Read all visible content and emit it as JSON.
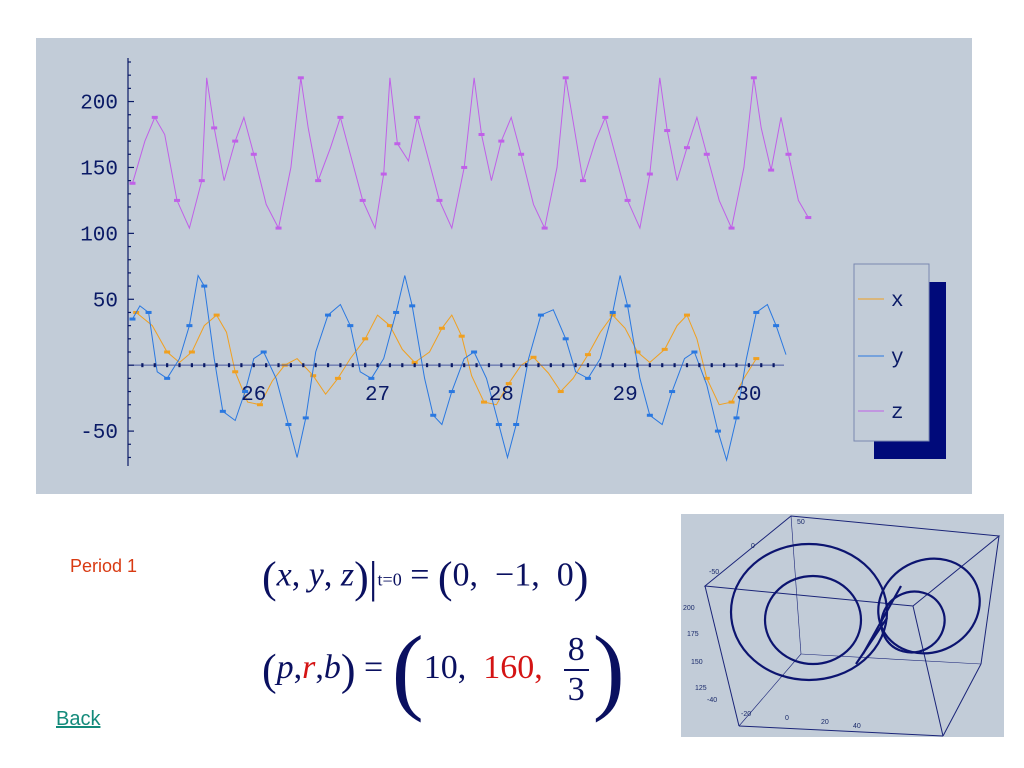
{
  "chart_data": {
    "type": "line",
    "x_range": [
      25.0,
      30.3
    ],
    "y_range": [
      -78,
      230
    ],
    "x_ticks": [
      "26",
      "27",
      "28",
      "29",
      "30"
    ],
    "x_tick_values": [
      26,
      27,
      28,
      29,
      30
    ],
    "y_ticks": [
      "200",
      "150",
      "100",
      "50",
      "-50"
    ],
    "y_tick_values": [
      200,
      150,
      100,
      50,
      -50
    ],
    "legend_position": "right",
    "series": [
      {
        "name": "x",
        "color": "#f0a020",
        "points": [
          [
            25.05,
            40
          ],
          [
            25.18,
            30
          ],
          [
            25.3,
            10
          ],
          [
            25.4,
            2
          ],
          [
            25.5,
            10
          ],
          [
            25.6,
            30
          ],
          [
            25.7,
            38
          ],
          [
            25.78,
            25
          ],
          [
            25.85,
            -5
          ],
          [
            25.95,
            -28
          ],
          [
            26.05,
            -30
          ],
          [
            26.15,
            -12
          ],
          [
            26.25,
            0
          ],
          [
            26.35,
            5
          ],
          [
            26.48,
            -8
          ],
          [
            26.58,
            -22
          ],
          [
            26.68,
            -10
          ],
          [
            26.78,
            5
          ],
          [
            26.9,
            20
          ],
          [
            27.0,
            38
          ],
          [
            27.1,
            30
          ],
          [
            27.2,
            12
          ],
          [
            27.3,
            2
          ],
          [
            27.42,
            10
          ],
          [
            27.52,
            28
          ],
          [
            27.6,
            38
          ],
          [
            27.68,
            22
          ],
          [
            27.76,
            -8
          ],
          [
            27.86,
            -28
          ],
          [
            27.96,
            -30
          ],
          [
            28.06,
            -14
          ],
          [
            28.16,
            0
          ],
          [
            28.26,
            6
          ],
          [
            28.38,
            -6
          ],
          [
            28.48,
            -20
          ],
          [
            28.58,
            -10
          ],
          [
            28.7,
            8
          ],
          [
            28.8,
            25
          ],
          [
            28.9,
            38
          ],
          [
            29.0,
            28
          ],
          [
            29.1,
            10
          ],
          [
            29.2,
            2
          ],
          [
            29.32,
            12
          ],
          [
            29.42,
            30
          ],
          [
            29.5,
            38
          ],
          [
            29.58,
            20
          ],
          [
            29.66,
            -10
          ],
          [
            29.76,
            -30
          ],
          [
            29.86,
            -28
          ],
          [
            29.96,
            -10
          ],
          [
            30.06,
            5
          ]
        ]
      },
      {
        "name": "y",
        "color": "#2a78e0",
        "points": [
          [
            25.02,
            35
          ],
          [
            25.08,
            45
          ],
          [
            25.15,
            40
          ],
          [
            25.22,
            -5
          ],
          [
            25.3,
            -10
          ],
          [
            25.4,
            5
          ],
          [
            25.48,
            30
          ],
          [
            25.55,
            68
          ],
          [
            25.6,
            60
          ],
          [
            25.68,
            5
          ],
          [
            25.75,
            -35
          ],
          [
            25.85,
            -42
          ],
          [
            25.93,
            -20
          ],
          [
            26.0,
            5
          ],
          [
            26.08,
            10
          ],
          [
            26.18,
            -10
          ],
          [
            26.28,
            -45
          ],
          [
            26.35,
            -70
          ],
          [
            26.42,
            -40
          ],
          [
            26.5,
            10
          ],
          [
            26.6,
            38
          ],
          [
            26.7,
            46
          ],
          [
            26.78,
            30
          ],
          [
            26.86,
            -5
          ],
          [
            26.95,
            -10
          ],
          [
            27.05,
            5
          ],
          [
            27.15,
            40
          ],
          [
            27.22,
            68
          ],
          [
            27.28,
            45
          ],
          [
            27.38,
            -10
          ],
          [
            27.45,
            -38
          ],
          [
            27.52,
            -45
          ],
          [
            27.6,
            -20
          ],
          [
            27.7,
            5
          ],
          [
            27.78,
            10
          ],
          [
            27.88,
            -10
          ],
          [
            27.98,
            -45
          ],
          [
            28.05,
            -70
          ],
          [
            28.12,
            -45
          ],
          [
            28.22,
            5
          ],
          [
            28.32,
            38
          ],
          [
            28.42,
            42
          ],
          [
            28.52,
            20
          ],
          [
            28.6,
            -5
          ],
          [
            28.7,
            -10
          ],
          [
            28.8,
            5
          ],
          [
            28.9,
            40
          ],
          [
            28.96,
            68
          ],
          [
            29.02,
            45
          ],
          [
            29.12,
            -10
          ],
          [
            29.2,
            -38
          ],
          [
            29.3,
            -45
          ],
          [
            29.38,
            -20
          ],
          [
            29.48,
            5
          ],
          [
            29.56,
            10
          ],
          [
            29.66,
            -15
          ],
          [
            29.75,
            -50
          ],
          [
            29.82,
            -72
          ],
          [
            29.9,
            -40
          ],
          [
            29.98,
            5
          ],
          [
            30.06,
            40
          ],
          [
            30.15,
            46
          ],
          [
            30.22,
            30
          ],
          [
            30.3,
            8
          ]
        ]
      },
      {
        "name": "z",
        "color": "#c060e8",
        "points": [
          [
            25.02,
            138
          ],
          [
            25.12,
            170
          ],
          [
            25.2,
            188
          ],
          [
            25.28,
            175
          ],
          [
            25.38,
            125
          ],
          [
            25.48,
            104
          ],
          [
            25.58,
            140
          ],
          [
            25.62,
            218
          ],
          [
            25.68,
            180
          ],
          [
            25.76,
            140
          ],
          [
            25.85,
            170
          ],
          [
            25.92,
            188
          ],
          [
            26.0,
            160
          ],
          [
            26.1,
            122
          ],
          [
            26.2,
            104
          ],
          [
            26.3,
            150
          ],
          [
            26.38,
            218
          ],
          [
            26.44,
            180
          ],
          [
            26.52,
            140
          ],
          [
            26.62,
            165
          ],
          [
            26.7,
            188
          ],
          [
            26.78,
            160
          ],
          [
            26.88,
            125
          ],
          [
            26.98,
            104
          ],
          [
            27.05,
            145
          ],
          [
            27.1,
            218
          ],
          [
            27.16,
            168
          ],
          [
            27.25,
            155
          ],
          [
            27.32,
            188
          ],
          [
            27.4,
            160
          ],
          [
            27.5,
            125
          ],
          [
            27.6,
            104
          ],
          [
            27.7,
            150
          ],
          [
            27.78,
            218
          ],
          [
            27.84,
            175
          ],
          [
            27.92,
            140
          ],
          [
            28.0,
            170
          ],
          [
            28.08,
            188
          ],
          [
            28.16,
            160
          ],
          [
            28.26,
            122
          ],
          [
            28.35,
            104
          ],
          [
            28.45,
            150
          ],
          [
            28.52,
            218
          ],
          [
            28.58,
            185
          ],
          [
            28.66,
            140
          ],
          [
            28.76,
            170
          ],
          [
            28.84,
            188
          ],
          [
            28.92,
            160
          ],
          [
            29.02,
            125
          ],
          [
            29.12,
            104
          ],
          [
            29.2,
            145
          ],
          [
            29.28,
            218
          ],
          [
            29.34,
            178
          ],
          [
            29.42,
            140
          ],
          [
            29.5,
            165
          ],
          [
            29.58,
            188
          ],
          [
            29.66,
            160
          ],
          [
            29.76,
            125
          ],
          [
            29.86,
            104
          ],
          [
            29.96,
            150
          ],
          [
            30.04,
            218
          ],
          [
            30.1,
            180
          ],
          [
            30.18,
            148
          ],
          [
            30.26,
            188
          ],
          [
            30.32,
            160
          ],
          [
            30.4,
            125
          ],
          [
            30.48,
            112
          ]
        ]
      }
    ]
  },
  "period_label": "Period 1",
  "back_link": "Back",
  "equation1": {
    "lhs_open": "(",
    "vars": [
      "x",
      "y",
      "z"
    ],
    "lhs_close": ")",
    "bar": "|",
    "subscript": "t=0",
    "equals": "=",
    "rhs": [
      "0,",
      "−1,",
      "0"
    ]
  },
  "equation2": {
    "vars": [
      "p",
      "r",
      "b"
    ],
    "equals": "=",
    "v1": "10,",
    "v2": "160,",
    "frac_num": "8",
    "frac_den": "3"
  },
  "attractor": {
    "axis_labels": [
      "50",
      "0",
      "-50",
      "200",
      "175",
      "150",
      "125",
      "-40",
      "-20",
      "0",
      "20",
      "40"
    ]
  }
}
